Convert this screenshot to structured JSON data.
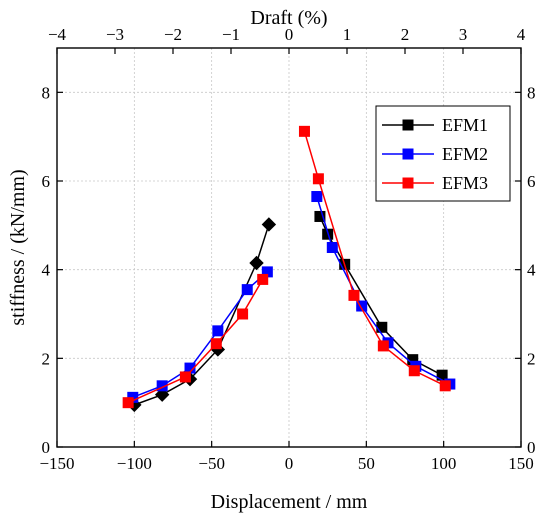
{
  "chart_data": {
    "type": "line",
    "xlabel": "Displacement / mm",
    "x2label": "Draft (%)",
    "ylabel": "stiffness / (kN/mm)",
    "xlim": [
      -150,
      150
    ],
    "x2lim": [
      -4,
      4
    ],
    "ylim": [
      0,
      9
    ],
    "xticks": [
      -150,
      -100,
      -50,
      0,
      50,
      100,
      150
    ],
    "xtick_labels": [
      "−150",
      "−100",
      "−50",
      "0",
      "50",
      "100",
      "150"
    ],
    "x2ticks": [
      -4,
      -3,
      -2,
      -1,
      0,
      1,
      2,
      3,
      4
    ],
    "x2tick_labels": [
      "−4",
      "−3",
      "−2",
      "−1",
      "0",
      "1",
      "2",
      "3",
      "4"
    ],
    "yticks": [
      0,
      2,
      4,
      6,
      8
    ],
    "ytick_labels": [
      "0",
      "2",
      "4",
      "6",
      "8"
    ],
    "grid": true,
    "legend_position": "top-right",
    "series": [
      {
        "name": "EFM1",
        "color": "#000000",
        "negative": [
          {
            "x": -100,
            "y": 0.95,
            "marker": "diamond"
          },
          {
            "x": -82,
            "y": 1.18,
            "marker": "diamond"
          },
          {
            "x": -64,
            "y": 1.53,
            "marker": "diamond"
          },
          {
            "x": -46,
            "y": 2.2,
            "marker": "diamond"
          },
          {
            "x": -21,
            "y": 4.15,
            "marker": "diamond"
          },
          {
            "x": -13,
            "y": 5.02,
            "marker": "diamond"
          }
        ],
        "positive": [
          {
            "x": 20,
            "y": 5.2,
            "marker": "square"
          },
          {
            "x": 25,
            "y": 4.8,
            "marker": "square"
          },
          {
            "x": 36,
            "y": 4.12,
            "marker": "square"
          },
          {
            "x": 60,
            "y": 2.7,
            "marker": "square"
          },
          {
            "x": 80,
            "y": 1.97,
            "marker": "square"
          },
          {
            "x": 99,
            "y": 1.62,
            "marker": "square"
          }
        ]
      },
      {
        "name": "EFM2",
        "color": "#0000ff",
        "negative": [
          {
            "x": -101,
            "y": 1.12,
            "marker": "square"
          },
          {
            "x": -82,
            "y": 1.38,
            "marker": "square"
          },
          {
            "x": -64,
            "y": 1.78,
            "marker": "square"
          },
          {
            "x": -46,
            "y": 2.62,
            "marker": "square"
          },
          {
            "x": -27,
            "y": 3.55,
            "marker": "square"
          },
          {
            "x": -14,
            "y": 3.95,
            "marker": "square"
          }
        ],
        "positive": [
          {
            "x": 18,
            "y": 5.65,
            "marker": "square"
          },
          {
            "x": 28,
            "y": 4.5,
            "marker": "square"
          },
          {
            "x": 47,
            "y": 3.18,
            "marker": "square"
          },
          {
            "x": 64,
            "y": 2.35,
            "marker": "square"
          },
          {
            "x": 82,
            "y": 1.82,
            "marker": "square"
          },
          {
            "x": 104,
            "y": 1.42,
            "marker": "square"
          }
        ]
      },
      {
        "name": "EFM3",
        "color": "#ff0000",
        "negative": [
          {
            "x": -104,
            "y": 1.0,
            "marker": "square"
          },
          {
            "x": -67,
            "y": 1.58,
            "marker": "square"
          },
          {
            "x": -47,
            "y": 2.33,
            "marker": "square"
          },
          {
            "x": -30,
            "y": 3.0,
            "marker": "square"
          },
          {
            "x": -17,
            "y": 3.78,
            "marker": "square"
          }
        ],
        "positive": [
          {
            "x": 10,
            "y": 7.12,
            "marker": "square"
          },
          {
            "x": 19,
            "y": 6.05,
            "marker": "square"
          },
          {
            "x": 42,
            "y": 3.42,
            "marker": "square"
          },
          {
            "x": 61,
            "y": 2.28,
            "marker": "square"
          },
          {
            "x": 81,
            "y": 1.72,
            "marker": "square"
          },
          {
            "x": 101,
            "y": 1.38,
            "marker": "square"
          }
        ]
      }
    ]
  }
}
